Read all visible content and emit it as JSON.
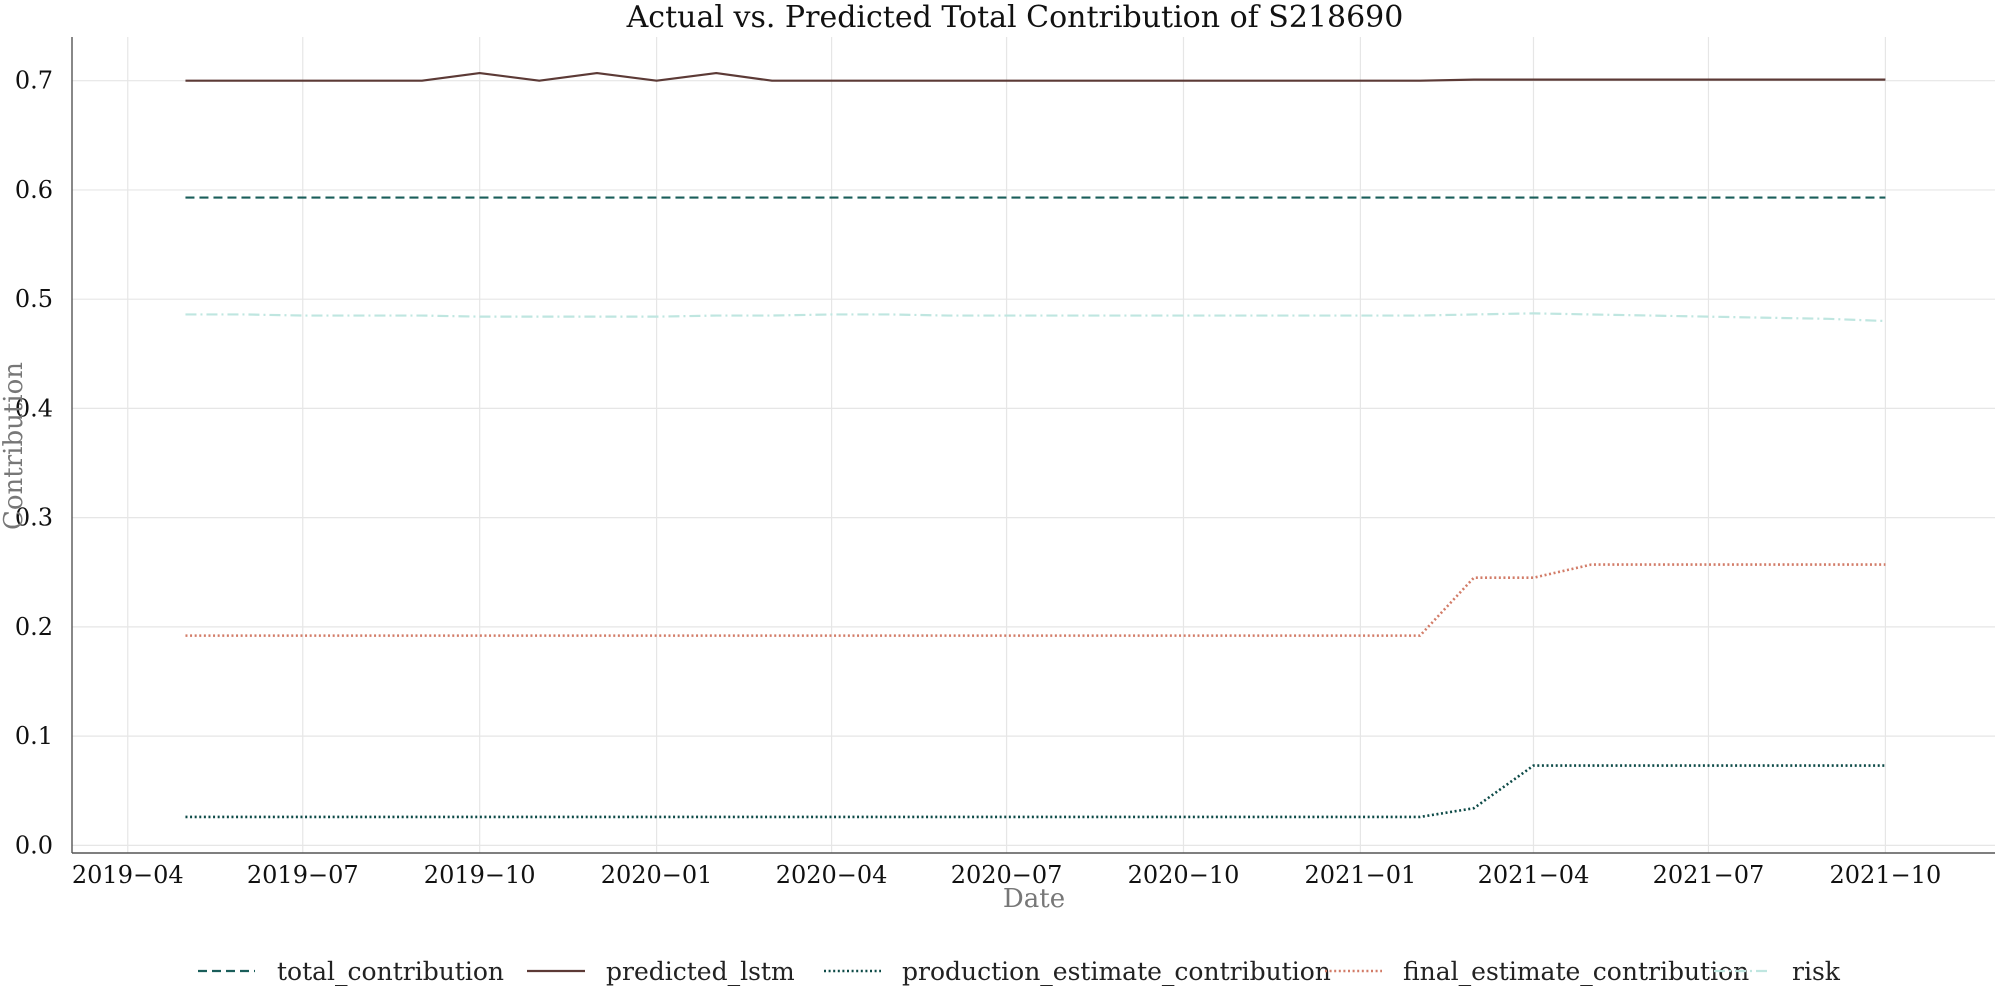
{
  "chart_data": {
    "type": "line",
    "title": "Actual vs. Predicted Total Contribution of S218690",
    "xlabel": "Date",
    "ylabel": "Contribution",
    "x_ticks": [
      "2019-04-01",
      "2019-07-01",
      "2019-10-01",
      "2020-01-01",
      "2020-04-01",
      "2020-07-01",
      "2020-10-01",
      "2021-01-01",
      "2021-04-01",
      "2021-07-01",
      "2021-10-01"
    ],
    "x_tick_labels": [
      "2019−04",
      "2019−07",
      "2019−10",
      "2020−01",
      "2020−04",
      "2020−07",
      "2020−10",
      "2021−01",
      "2021−04",
      "2021−07",
      "2021−10"
    ],
    "y_ticks": [
      0.0,
      0.1,
      0.2,
      0.3,
      0.4,
      0.5,
      0.6,
      0.7
    ],
    "y_tick_labels": [
      "0.0",
      "0.1",
      "0.2",
      "0.3",
      "0.4",
      "0.5",
      "0.6",
      "0.7"
    ],
    "xlim": [
      "2019-03-03",
      "2021-11-27"
    ],
    "ylim": [
      -0.007,
      0.74
    ],
    "grid": true,
    "legend_position": "bottom-center",
    "x": [
      "2019-05-01",
      "2019-06-01",
      "2019-07-01",
      "2019-08-01",
      "2019-09-01",
      "2019-10-01",
      "2019-11-01",
      "2019-12-01",
      "2020-01-01",
      "2020-02-01",
      "2020-03-01",
      "2020-04-01",
      "2020-05-01",
      "2020-06-01",
      "2020-07-01",
      "2020-08-01",
      "2020-09-01",
      "2020-10-01",
      "2020-11-01",
      "2020-12-01",
      "2021-01-01",
      "2021-02-01",
      "2021-03-01",
      "2021-04-01",
      "2021-05-01",
      "2021-06-01",
      "2021-07-01",
      "2021-08-01",
      "2021-09-01",
      "2021-10-01"
    ],
    "series": [
      {
        "name": "total_contribution",
        "color": "#1a5e5a",
        "dash": "dashed",
        "values": [
          0.593,
          0.593,
          0.593,
          0.593,
          0.593,
          0.593,
          0.593,
          0.593,
          0.593,
          0.593,
          0.593,
          0.593,
          0.593,
          0.593,
          0.593,
          0.593,
          0.593,
          0.593,
          0.593,
          0.593,
          0.593,
          0.593,
          0.593,
          0.593,
          0.593,
          0.593,
          0.593,
          0.593,
          0.593,
          0.593
        ]
      },
      {
        "name": "predicted_lstm",
        "color": "#5c3a36",
        "dash": "solid",
        "values": [
          0.7,
          0.7,
          0.7,
          0.7,
          0.7,
          0.707,
          0.7,
          0.707,
          0.7,
          0.707,
          0.7,
          0.7,
          0.7,
          0.7,
          0.7,
          0.7,
          0.7,
          0.7,
          0.7,
          0.7,
          0.7,
          0.7,
          0.701,
          0.701,
          0.701,
          0.701,
          0.701,
          0.701,
          0.701,
          0.701
        ]
      },
      {
        "name": "production_estimate_contribution",
        "color": "#0d4a47",
        "dash": "dotted",
        "values": [
          0.026,
          0.026,
          0.026,
          0.026,
          0.026,
          0.026,
          0.026,
          0.026,
          0.026,
          0.026,
          0.026,
          0.026,
          0.026,
          0.026,
          0.026,
          0.026,
          0.026,
          0.026,
          0.026,
          0.026,
          0.026,
          0.026,
          0.034,
          0.073,
          0.073,
          0.073,
          0.073,
          0.073,
          0.073,
          0.073
        ]
      },
      {
        "name": "final_estimate_contribution",
        "color": "#d27c68",
        "dash": "dotted",
        "values": [
          0.192,
          0.192,
          0.192,
          0.192,
          0.192,
          0.192,
          0.192,
          0.192,
          0.192,
          0.192,
          0.192,
          0.192,
          0.192,
          0.192,
          0.192,
          0.192,
          0.192,
          0.192,
          0.192,
          0.192,
          0.192,
          0.192,
          0.245,
          0.245,
          0.257,
          0.257,
          0.257,
          0.257,
          0.257,
          0.257
        ]
      },
      {
        "name": "risk",
        "color": "#bfe6e0",
        "dash": "dashdot",
        "values": [
          0.486,
          0.486,
          0.485,
          0.485,
          0.485,
          0.484,
          0.484,
          0.484,
          0.484,
          0.485,
          0.485,
          0.486,
          0.486,
          0.485,
          0.485,
          0.485,
          0.485,
          0.485,
          0.485,
          0.485,
          0.485,
          0.485,
          0.486,
          0.487,
          0.486,
          0.485,
          0.484,
          0.483,
          0.482,
          0.48
        ]
      }
    ]
  }
}
